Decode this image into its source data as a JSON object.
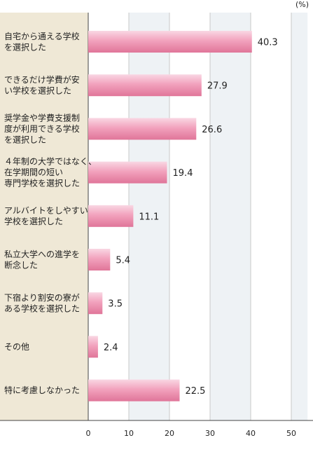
{
  "chart_data": {
    "type": "bar",
    "orientation": "horizontal",
    "unit": "(%)",
    "categories": [
      [
        "自宅から通える学校",
        "を選択した"
      ],
      [
        "できるだけ学費が安",
        "い学校を選択した"
      ],
      [
        "奨学金や学費支援制",
        "度が利用できる学校",
        "を選択した"
      ],
      [
        "４年制の大学ではなく、",
        "在学期間の短い",
        "専門学校を選択した"
      ],
      [
        "アルバイトをしやすい",
        "学校を選択した"
      ],
      [
        "私立大学への進学を",
        "断念した"
      ],
      [
        "下宿より割安の寮が",
        "ある学校を選択した"
      ],
      [
        "その他"
      ],
      [
        "特に考慮しなかった"
      ]
    ],
    "values": [
      40.3,
      27.9,
      26.6,
      19.4,
      11.1,
      5.4,
      3.5,
      2.4,
      22.5
    ],
    "value_labels": [
      "40.3",
      "27.9",
      "26.6",
      "19.4",
      "11.1",
      "5.4",
      "3.5",
      "2.4",
      "22.5"
    ],
    "xlim": [
      0,
      54
    ],
    "ticks": [
      0,
      10,
      20,
      30,
      40,
      50
    ],
    "tick_labels": [
      "0",
      "10",
      "20",
      "30",
      "40",
      "50"
    ],
    "grid": true,
    "colors": {
      "label_panel": "#efe8d6",
      "band_light": "#eef2f5",
      "band_white": "#ffffff",
      "grid_line": "#c8c8c8",
      "axis_line": "#444444",
      "bar_light": "#f9d7e3",
      "bar_mid": "#f2a2bd",
      "bar_dark": "#e07599"
    }
  }
}
